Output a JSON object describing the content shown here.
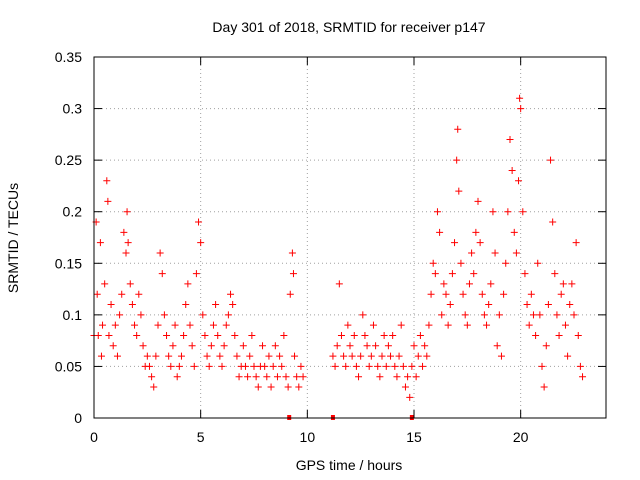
{
  "chart_data": {
    "type": "scatter",
    "title": "Day 301 of 2018, SRMTID for receiver p147",
    "xlabel": "GPS time / hours",
    "ylabel": "SRMTID / TECUs",
    "xlim": [
      0,
      24
    ],
    "ylim": [
      0,
      0.35
    ],
    "x_ticks": [
      0,
      5,
      10,
      15,
      20
    ],
    "x_tick_labels": [
      "0",
      "5",
      "10",
      "15",
      "20"
    ],
    "y_ticks": [
      0,
      0.05,
      0.1,
      0.15,
      0.2,
      0.25,
      0.3,
      0.35
    ],
    "y_tick_labels": [
      "0",
      "0.05",
      "0.1",
      "0.15",
      "0.2",
      "0.25",
      "0.3",
      "0.35"
    ],
    "grid": true,
    "marker": "+",
    "color": "#ff0000",
    "series": [
      {
        "name": "SRMTID",
        "points": [
          [
            0.0,
            0.08
          ],
          [
            0.1,
            0.19
          ],
          [
            0.15,
            0.12
          ],
          [
            0.2,
            0.08
          ],
          [
            0.3,
            0.17
          ],
          [
            0.35,
            0.06
          ],
          [
            0.4,
            0.09
          ],
          [
            0.5,
            0.13
          ],
          [
            0.6,
            0.23
          ],
          [
            0.65,
            0.21
          ],
          [
            0.7,
            0.08
          ],
          [
            0.8,
            0.11
          ],
          [
            0.9,
            0.07
          ],
          [
            1.0,
            0.09
          ],
          [
            1.1,
            0.06
          ],
          [
            1.2,
            0.1
          ],
          [
            1.3,
            0.12
          ],
          [
            1.4,
            0.18
          ],
          [
            1.5,
            0.16
          ],
          [
            1.55,
            0.2
          ],
          [
            1.6,
            0.17
          ],
          [
            1.7,
            0.13
          ],
          [
            1.8,
            0.11
          ],
          [
            1.9,
            0.09
          ],
          [
            2.0,
            0.08
          ],
          [
            2.1,
            0.12
          ],
          [
            2.2,
            0.1
          ],
          [
            2.3,
            0.07
          ],
          [
            2.4,
            0.05
          ],
          [
            2.5,
            0.06
          ],
          [
            2.6,
            0.05
          ],
          [
            2.7,
            0.04
          ],
          [
            2.8,
            0.03
          ],
          [
            2.9,
            0.06
          ],
          [
            3.0,
            0.09
          ],
          [
            3.1,
            0.16
          ],
          [
            3.2,
            0.14
          ],
          [
            3.3,
            0.1
          ],
          [
            3.4,
            0.08
          ],
          [
            3.5,
            0.06
          ],
          [
            3.6,
            0.05
          ],
          [
            3.7,
            0.07
          ],
          [
            3.8,
            0.09
          ],
          [
            3.9,
            0.04
          ],
          [
            4.0,
            0.05
          ],
          [
            4.1,
            0.06
          ],
          [
            4.2,
            0.08
          ],
          [
            4.3,
            0.11
          ],
          [
            4.4,
            0.13
          ],
          [
            4.5,
            0.09
          ],
          [
            4.6,
            0.07
          ],
          [
            4.7,
            0.05
          ],
          [
            4.8,
            0.14
          ],
          [
            4.9,
            0.19
          ],
          [
            5.0,
            0.17
          ],
          [
            5.1,
            0.1
          ],
          [
            5.2,
            0.08
          ],
          [
            5.3,
            0.06
          ],
          [
            5.4,
            0.05
          ],
          [
            5.5,
            0.07
          ],
          [
            5.6,
            0.09
          ],
          [
            5.7,
            0.11
          ],
          [
            5.8,
            0.08
          ],
          [
            5.9,
            0.06
          ],
          [
            6.0,
            0.05
          ],
          [
            6.1,
            0.07
          ],
          [
            6.2,
            0.09
          ],
          [
            6.3,
            0.1
          ],
          [
            6.4,
            0.12
          ],
          [
            6.5,
            0.11
          ],
          [
            6.6,
            0.08
          ],
          [
            6.7,
            0.06
          ],
          [
            6.8,
            0.04
          ],
          [
            6.9,
            0.05
          ],
          [
            7.0,
            0.07
          ],
          [
            7.1,
            0.05
          ],
          [
            7.2,
            0.04
          ],
          [
            7.3,
            0.06
          ],
          [
            7.4,
            0.08
          ],
          [
            7.5,
            0.05
          ],
          [
            7.6,
            0.04
          ],
          [
            7.7,
            0.03
          ],
          [
            7.8,
            0.05
          ],
          [
            7.9,
            0.07
          ],
          [
            8.0,
            0.05
          ],
          [
            8.1,
            0.04
          ],
          [
            8.2,
            0.06
          ],
          [
            8.3,
            0.03
          ],
          [
            8.4,
            0.05
          ],
          [
            8.5,
            0.07
          ],
          [
            8.6,
            0.04
          ],
          [
            8.7,
            0.06
          ],
          [
            8.8,
            0.05
          ],
          [
            8.9,
            0.08
          ],
          [
            9.0,
            0.04
          ],
          [
            9.1,
            0.03
          ],
          [
            9.2,
            0.12
          ],
          [
            9.3,
            0.16
          ],
          [
            9.35,
            0.14
          ],
          [
            9.4,
            0.06
          ],
          [
            9.5,
            0.04
          ],
          [
            9.6,
            0.03
          ],
          [
            9.7,
            0.05
          ],
          [
            9.8,
            0.04
          ],
          [
            11.2,
            0.06
          ],
          [
            11.3,
            0.05
          ],
          [
            11.4,
            0.07
          ],
          [
            11.5,
            0.13
          ],
          [
            11.6,
            0.08
          ],
          [
            11.7,
            0.06
          ],
          [
            11.8,
            0.05
          ],
          [
            11.9,
            0.09
          ],
          [
            12.0,
            0.07
          ],
          [
            12.1,
            0.06
          ],
          [
            12.2,
            0.08
          ],
          [
            12.3,
            0.05
          ],
          [
            12.4,
            0.04
          ],
          [
            12.5,
            0.06
          ],
          [
            12.6,
            0.1
          ],
          [
            12.7,
            0.08
          ],
          [
            12.8,
            0.07
          ],
          [
            12.9,
            0.05
          ],
          [
            13.0,
            0.06
          ],
          [
            13.1,
            0.09
          ],
          [
            13.2,
            0.07
          ],
          [
            13.3,
            0.05
          ],
          [
            13.4,
            0.04
          ],
          [
            13.5,
            0.06
          ],
          [
            13.6,
            0.08
          ],
          [
            13.7,
            0.05
          ],
          [
            13.8,
            0.07
          ],
          [
            13.9,
            0.06
          ],
          [
            14.0,
            0.08
          ],
          [
            14.1,
            0.05
          ],
          [
            14.2,
            0.04
          ],
          [
            14.3,
            0.06
          ],
          [
            14.4,
            0.09
          ],
          [
            14.5,
            0.05
          ],
          [
            14.6,
            0.03
          ],
          [
            14.7,
            0.04
          ],
          [
            14.8,
            0.02
          ],
          [
            14.9,
            0.05
          ],
          [
            15.0,
            0.07
          ],
          [
            15.1,
            0.04
          ],
          [
            15.2,
            0.06
          ],
          [
            15.3,
            0.08
          ],
          [
            15.4,
            0.05
          ],
          [
            15.5,
            0.07
          ],
          [
            15.6,
            0.06
          ],
          [
            15.7,
            0.09
          ],
          [
            15.8,
            0.12
          ],
          [
            15.9,
            0.15
          ],
          [
            16.0,
            0.14
          ],
          [
            16.1,
            0.2
          ],
          [
            16.2,
            0.18
          ],
          [
            16.3,
            0.1
          ],
          [
            16.4,
            0.13
          ],
          [
            16.5,
            0.12
          ],
          [
            16.6,
            0.09
          ],
          [
            16.7,
            0.11
          ],
          [
            16.8,
            0.14
          ],
          [
            16.9,
            0.17
          ],
          [
            17.0,
            0.25
          ],
          [
            17.05,
            0.28
          ],
          [
            17.1,
            0.22
          ],
          [
            17.2,
            0.15
          ],
          [
            17.3,
            0.12
          ],
          [
            17.4,
            0.1
          ],
          [
            17.5,
            0.09
          ],
          [
            17.6,
            0.13
          ],
          [
            17.7,
            0.16
          ],
          [
            17.8,
            0.14
          ],
          [
            17.9,
            0.18
          ],
          [
            18.0,
            0.21
          ],
          [
            18.1,
            0.17
          ],
          [
            18.2,
            0.12
          ],
          [
            18.3,
            0.1
          ],
          [
            18.4,
            0.09
          ],
          [
            18.5,
            0.11
          ],
          [
            18.6,
            0.13
          ],
          [
            18.7,
            0.2
          ],
          [
            18.8,
            0.16
          ],
          [
            18.9,
            0.07
          ],
          [
            19.0,
            0.1
          ],
          [
            19.1,
            0.06
          ],
          [
            19.2,
            0.12
          ],
          [
            19.3,
            0.15
          ],
          [
            19.4,
            0.2
          ],
          [
            19.5,
            0.27
          ],
          [
            19.6,
            0.24
          ],
          [
            19.7,
            0.18
          ],
          [
            19.8,
            0.16
          ],
          [
            19.9,
            0.23
          ],
          [
            19.95,
            0.31
          ],
          [
            20.0,
            0.3
          ],
          [
            20.1,
            0.2
          ],
          [
            20.2,
            0.14
          ],
          [
            20.3,
            0.11
          ],
          [
            20.4,
            0.09
          ],
          [
            20.5,
            0.12
          ],
          [
            20.6,
            0.1
          ],
          [
            20.7,
            0.08
          ],
          [
            20.8,
            0.15
          ],
          [
            20.9,
            0.1
          ],
          [
            21.0,
            0.05
          ],
          [
            21.1,
            0.03
          ],
          [
            21.2,
            0.07
          ],
          [
            21.3,
            0.11
          ],
          [
            21.4,
            0.25
          ],
          [
            21.5,
            0.19
          ],
          [
            21.6,
            0.14
          ],
          [
            21.7,
            0.1
          ],
          [
            21.8,
            0.08
          ],
          [
            21.9,
            0.12
          ],
          [
            22.0,
            0.13
          ],
          [
            22.1,
            0.09
          ],
          [
            22.2,
            0.06
          ],
          [
            22.3,
            0.11
          ],
          [
            22.4,
            0.13
          ],
          [
            22.5,
            0.1
          ],
          [
            22.6,
            0.17
          ],
          [
            22.7,
            0.08
          ],
          [
            22.8,
            0.05
          ],
          [
            22.9,
            0.04
          ]
        ]
      }
    ],
    "baseline_markers": [
      [
        9.15,
        0
      ],
      [
        11.2,
        0
      ],
      [
        14.9,
        0
      ]
    ]
  }
}
